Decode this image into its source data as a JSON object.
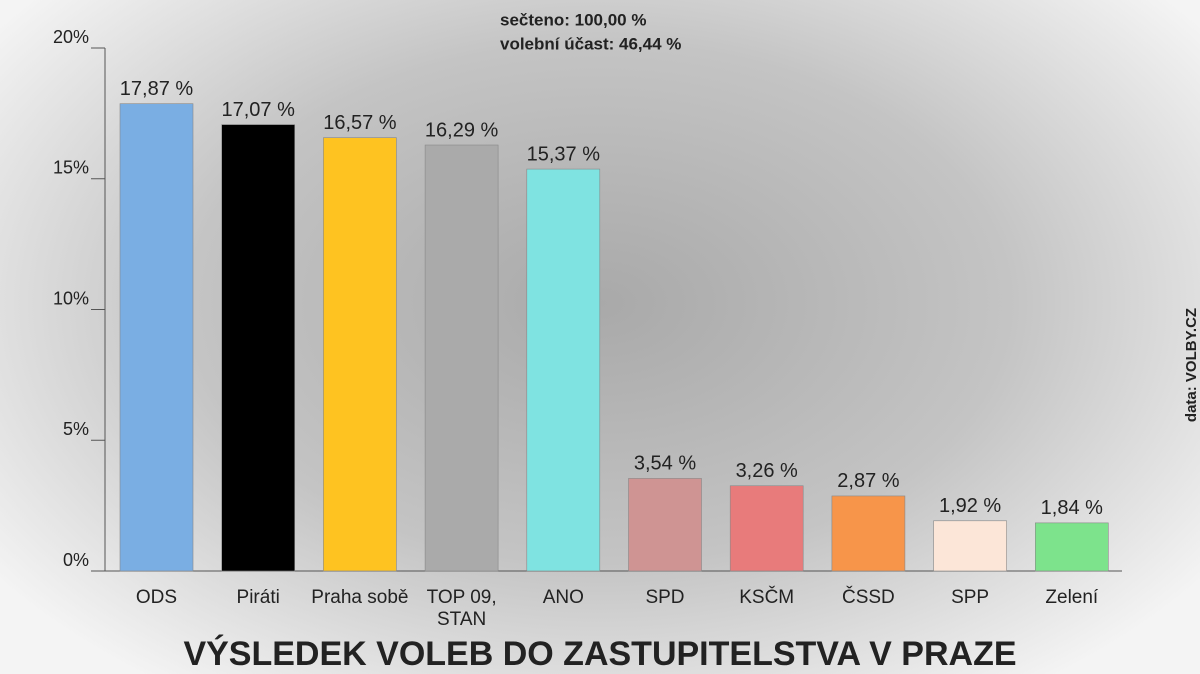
{
  "chart_data": {
    "type": "bar",
    "title": "VÝSLEDEK VOLEB DO ZASTUPITELSTVA V PRAZE",
    "annotations": [
      "sečteno: 100,00 %",
      "volební účast: 46,44 %"
    ],
    "source": "data: VOLBY.CZ",
    "categories": [
      "ODS",
      "Piráti",
      "Praha sobě",
      "TOP 09, STAN",
      "ANO",
      "SPD",
      "KSČM",
      "ČSSD",
      "SPP",
      "Zelení"
    ],
    "values": [
      17.87,
      17.07,
      16.57,
      16.29,
      15.37,
      3.54,
      3.26,
      2.87,
      1.92,
      1.84
    ],
    "value_labels": [
      "17,87 %",
      "17,07 %",
      "16,57 %",
      "16,29 %",
      "15,37 %",
      "3,54 %",
      "3,26 %",
      "2,87 %",
      "1,92 %",
      "1,84 %"
    ],
    "colors": [
      "#7aaee3",
      "#000000",
      "#fec321",
      "#aaaaaa",
      "#7fe3e1",
      "#cf9493",
      "#e87b7b",
      "#f7954a",
      "#fce6d8",
      "#7de38c"
    ],
    "ylim": [
      0,
      20
    ],
    "yticks": [
      {
        "value": 0,
        "label": "0%"
      },
      {
        "value": 5,
        "label": "5%"
      },
      {
        "value": 10,
        "label": "10%"
      },
      {
        "value": 15,
        "label": "15%"
      },
      {
        "value": 20,
        "label": "20%"
      }
    ]
  }
}
